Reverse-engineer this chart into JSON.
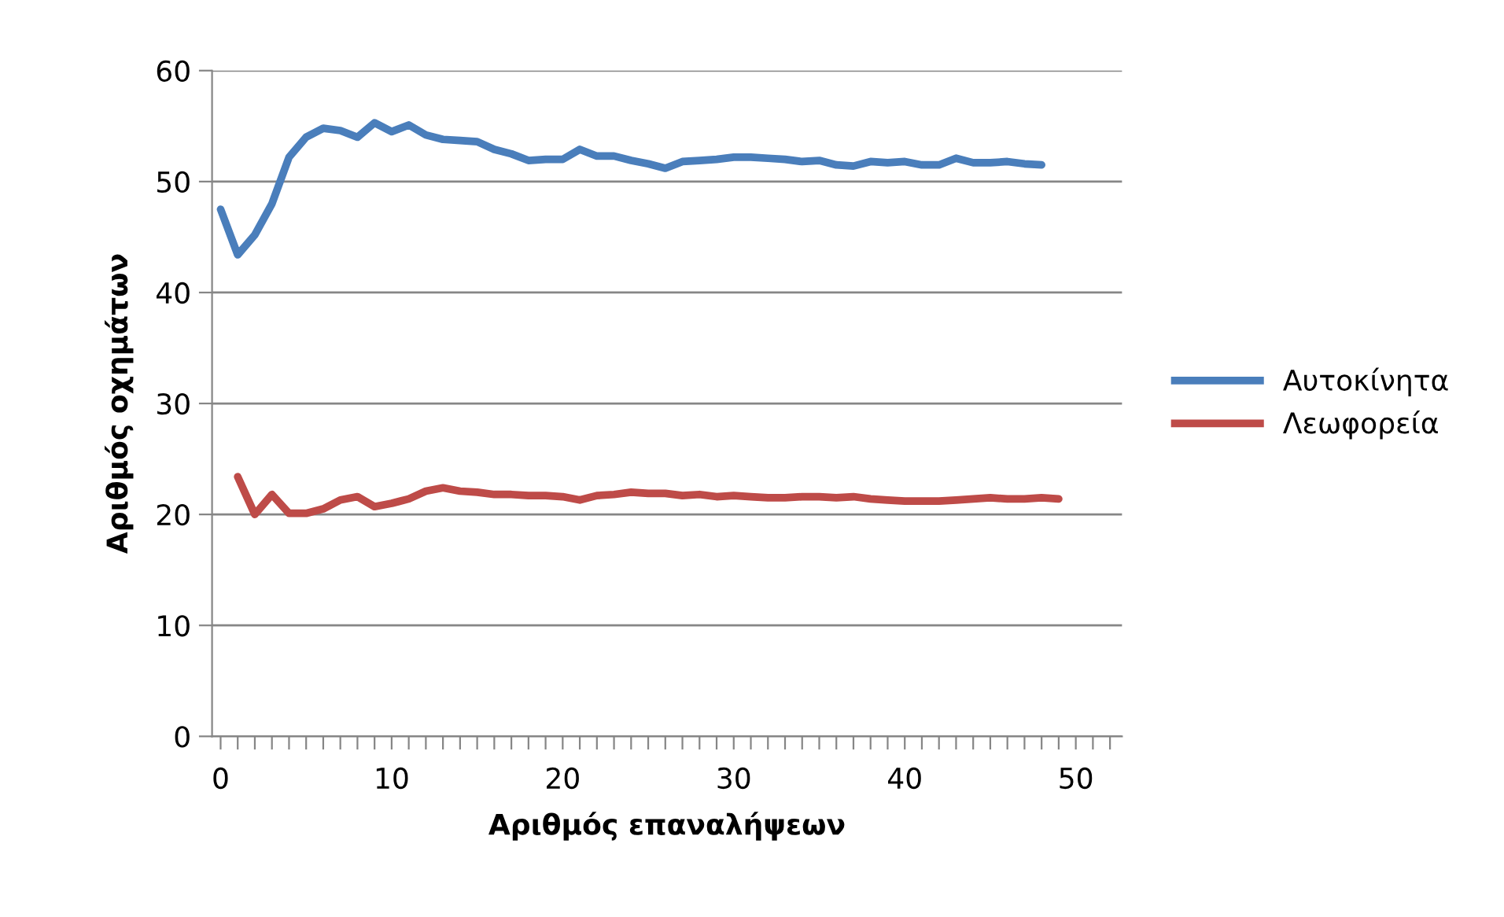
{
  "chart_data": {
    "type": "line",
    "xlabel": "Αριθμός επαναλήψεων",
    "ylabel": "Αριθμός οχημάτων",
    "xlim": [
      -0.5,
      52.7
    ],
    "xticks": [
      0,
      {
        "value": 1,
        "label": null
      },
      {
        "value": 2,
        "label": null
      },
      {
        "value": 3,
        "label": null
      },
      {
        "value": 4,
        "label": null
      },
      {
        "value": 5,
        "label": null
      },
      {
        "value": 6,
        "label": null
      },
      {
        "value": 7,
        "label": null
      },
      {
        "value": 8,
        "label": null
      },
      {
        "value": 9,
        "label": null
      },
      10,
      {
        "value": 11,
        "label": null
      },
      {
        "value": 12,
        "label": null
      },
      {
        "value": 13,
        "label": null
      },
      {
        "value": 14,
        "label": null
      },
      {
        "value": 15,
        "label": null
      },
      {
        "value": 16,
        "label": null
      },
      {
        "value": 17,
        "label": null
      },
      {
        "value": 18,
        "label": null
      },
      {
        "value": 19,
        "label": null
      },
      20,
      {
        "value": 21,
        "label": null
      },
      {
        "value": 22,
        "label": null
      },
      {
        "value": 23,
        "label": null
      },
      {
        "value": 24,
        "label": null
      },
      {
        "value": 25,
        "label": null
      },
      {
        "value": 26,
        "label": null
      },
      {
        "value": 27,
        "label": null
      },
      {
        "value": 28,
        "label": null
      },
      {
        "value": 29,
        "label": null
      },
      30,
      {
        "value": 31,
        "label": null
      },
      {
        "value": 32,
        "label": null
      },
      {
        "value": 33,
        "label": null
      },
      {
        "value": 34,
        "label": null
      },
      {
        "value": 35,
        "label": null
      },
      {
        "value": 36,
        "label": null
      },
      {
        "value": 37,
        "label": null
      },
      {
        "value": 38,
        "label": null
      },
      {
        "value": 39,
        "label": null
      },
      40,
      {
        "value": 41,
        "label": null
      },
      {
        "value": 42,
        "label": null
      },
      {
        "value": 43,
        "label": null
      },
      {
        "value": 44,
        "label": null
      },
      {
        "value": 45,
        "label": null
      },
      {
        "value": 46,
        "label": null
      },
      {
        "value": 47,
        "label": null
      },
      {
        "value": 48,
        "label": null
      },
      {
        "value": 49,
        "label": null
      },
      50,
      {
        "value": 51,
        "label": null
      },
      {
        "value": 52,
        "label": null
      }
    ],
    "ylim": [
      0,
      60
    ],
    "yticks": [
      0,
      10,
      20,
      30,
      40,
      50,
      60
    ],
    "grid": "y",
    "legend": "right",
    "marker": "none",
    "line_style": "solid",
    "series": [
      {
        "name": "Αυτοκίνητα",
        "color": "#4a7ebb",
        "x": [
          0,
          1,
          2,
          3,
          4,
          5,
          6,
          7,
          8,
          9,
          10,
          11,
          12,
          13,
          14,
          15,
          16,
          17,
          18,
          19,
          20,
          21,
          22,
          23,
          24,
          25,
          26,
          27,
          28,
          29,
          30,
          31,
          32,
          33,
          34,
          35,
          36,
          37,
          38,
          39,
          40,
          41,
          42,
          43,
          44,
          45,
          46,
          47,
          48
        ],
        "values": [
          47.5,
          43.4,
          45.2,
          48,
          52.2,
          54,
          54.8,
          54.6,
          54,
          55.3,
          54.5,
          55.1,
          54.2,
          53.8,
          53.7,
          53.6,
          52.9,
          52.5,
          51.9,
          52,
          52,
          52.9,
          52.3,
          52.3,
          51.9,
          51.6,
          51.2,
          51.8,
          51.9,
          52,
          52.2,
          52.2,
          52.1,
          52,
          51.8,
          51.9,
          51.5,
          51.4,
          51.8,
          51.7,
          51.8,
          51.5,
          51.5,
          52.1,
          51.7,
          51.7,
          51.8,
          51.6,
          51.5
        ]
      },
      {
        "name": "Λεωφορεία",
        "color": "#be4b48",
        "x": [
          1,
          2,
          3,
          4,
          5,
          6,
          7,
          8,
          9,
          10,
          11,
          12,
          13,
          14,
          15,
          16,
          17,
          18,
          19,
          20,
          21,
          22,
          23,
          24,
          25,
          26,
          27,
          28,
          29,
          30,
          31,
          32,
          33,
          34,
          35,
          36,
          37,
          38,
          39,
          40,
          41,
          42,
          43,
          44,
          45,
          46,
          47,
          48,
          49
        ],
        "values": [
          23.4,
          20,
          21.8,
          20.1,
          20.1,
          20.5,
          21.3,
          21.6,
          20.7,
          21,
          21.4,
          22.1,
          22.4,
          22.1,
          22,
          21.8,
          21.8,
          21.7,
          21.7,
          21.6,
          21.3,
          21.7,
          21.8,
          22,
          21.9,
          21.9,
          21.7,
          21.8,
          21.6,
          21.7,
          21.6,
          21.5,
          21.5,
          21.6,
          21.6,
          21.5,
          21.6,
          21.4,
          21.3,
          21.2,
          21.2,
          21.2,
          21.3,
          21.4,
          21.5,
          21.4,
          21.4,
          21.5,
          21.4
        ]
      }
    ]
  }
}
